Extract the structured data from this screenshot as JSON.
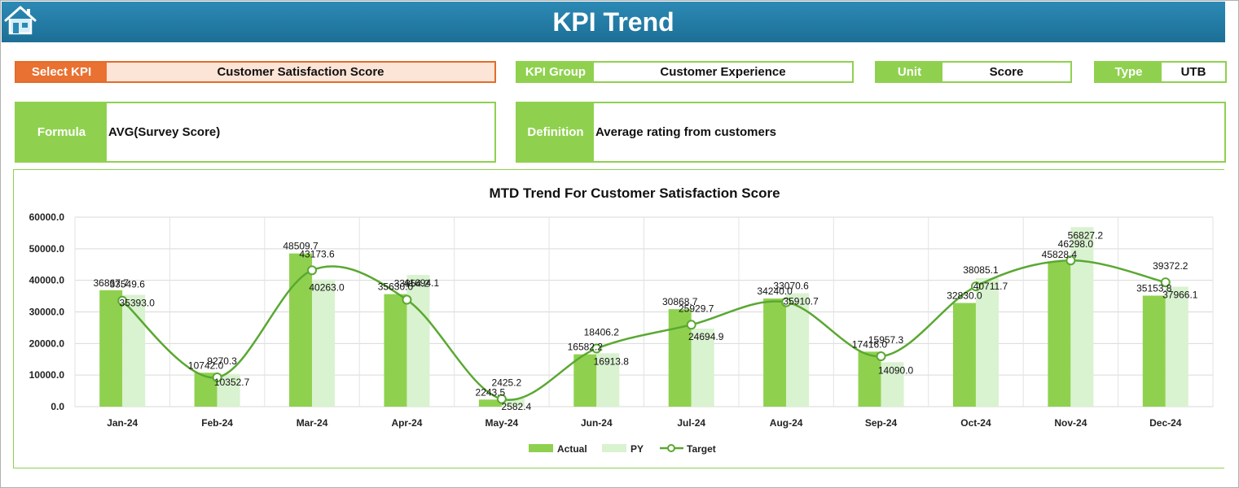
{
  "header": {
    "title": "KPI Trend",
    "home_icon": "home-icon"
  },
  "fields": {
    "select_kpi_label": "Select KPI",
    "select_kpi_value": "Customer Satisfaction Score",
    "kpi_group_label": "KPI Group",
    "kpi_group_value": "Customer Experience",
    "unit_label": "Unit",
    "unit_value": "Score",
    "type_label": "Type",
    "type_value": "UTB",
    "formula_label": "Formula",
    "formula_value": "AVG(Survey Score)",
    "definition_label": "Definition",
    "definition_value": "Average rating from customers"
  },
  "colors": {
    "accent_green": "#8fd14f",
    "select_orange": "#e97132",
    "actual": "#8fd14f",
    "py": "#d9f2d0",
    "target_line": "#5aa832",
    "banner": "#1f77a4"
  },
  "chart_data": {
    "type": "bar",
    "title": "MTD Trend For Customer Satisfaction Score",
    "categories": [
      "Jan-24",
      "Feb-24",
      "Mar-24",
      "Apr-24",
      "May-24",
      "Jun-24",
      "Jul-24",
      "Aug-24",
      "Sep-24",
      "Oct-24",
      "Nov-24",
      "Dec-24"
    ],
    "y_tick_labels": [
      "0.0",
      "10000.0",
      "20000.0",
      "30000.0",
      "40000.0",
      "50000.0",
      "60000.0"
    ],
    "ylim": [
      0,
      60000
    ],
    "grid": true,
    "legend_position": "bottom",
    "series": [
      {
        "name": "Actual",
        "kind": "bar",
        "values": [
          36867.7,
          10742.0,
          48509.7,
          35630.0,
          2243.5,
          16582.2,
          30868.7,
          34240.0,
          17416.0,
          32830.0,
          45828.4,
          35153.8
        ],
        "labels": [
          "36867.7",
          "10742.0",
          "48509.7",
          "35630.0",
          "2243.5",
          "16582.2",
          "30868.7",
          "34240.0",
          "17416.0",
          "32830.0",
          "45828.4",
          "35153.8"
        ]
      },
      {
        "name": "PY",
        "kind": "bar",
        "values": [
          35393.0,
          10352.7,
          40263.0,
          41694.1,
          2582.4,
          16913.8,
          24694.9,
          35910.7,
          14090.0,
          40711.7,
          56827.2,
          37966.1
        ],
        "labels": [
          "35393.0",
          "10352.7",
          "40263.0",
          "41694.1",
          "2582.4",
          "16913.8",
          "24694.9",
          "35910.7",
          "14090.0",
          "40711.7",
          "56827.2",
          "37966.1"
        ]
      },
      {
        "name": "Target",
        "kind": "line",
        "values": [
          33549.6,
          9270.3,
          43173.6,
          33854.2,
          2425.2,
          18406.2,
          25929.7,
          33070.6,
          15957.3,
          38085.1,
          46298.0,
          39372.2
        ],
        "labels": [
          "33549.6",
          "9270.3",
          "43173.6",
          "33854.2",
          "2425.2",
          "18406.2",
          "25929.7",
          "33070.6",
          "15957.3",
          "38085.1",
          "46298.0",
          "39372.2"
        ]
      }
    ]
  }
}
